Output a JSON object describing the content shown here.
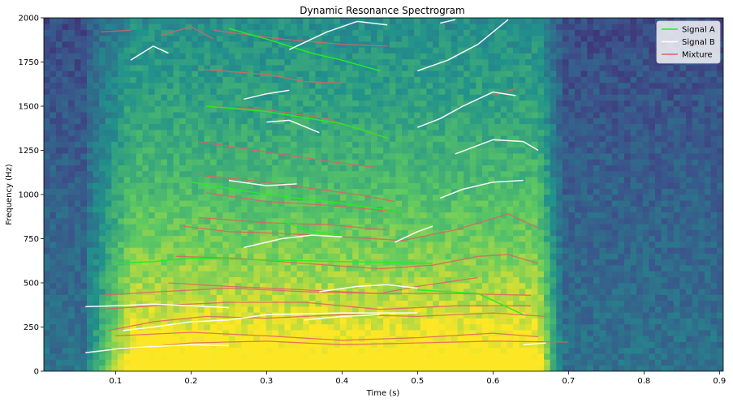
{
  "chart_data": {
    "type": "heatmap",
    "title": "Dynamic Resonance Spectrogram",
    "xlabel": "Time (s)",
    "ylabel": "Frequency (Hz)",
    "xlim": [
      0.005,
      0.905
    ],
    "ylim": [
      0,
      2000
    ],
    "x_ticks": [
      0.1,
      0.2,
      0.3,
      0.4,
      0.5,
      0.6,
      0.7,
      0.8,
      0.9
    ],
    "x_tick_labels": [
      "0.1",
      "0.2",
      "0.3",
      "0.4",
      "0.5",
      "0.6",
      "0.7",
      "0.8",
      "0.9"
    ],
    "y_ticks": [
      0,
      250,
      500,
      750,
      1000,
      1250,
      1500,
      1750,
      2000
    ],
    "y_tick_labels": [
      "0",
      "250",
      "500",
      "750",
      "1000",
      "1250",
      "1500",
      "1750",
      "2000"
    ],
    "colormap": "viridis",
    "legend": {
      "placement": "top-right"
    },
    "series": [
      {
        "name": "Signal A",
        "color": "#22ee22",
        "tracks": [
          [
            [
              0.1,
              610
            ],
            [
              0.15,
              620
            ],
            [
              0.2,
              640
            ],
            [
              0.3,
              630
            ],
            [
              0.4,
              620
            ],
            [
              0.52,
              610
            ]
          ],
          [
            [
              0.2,
              1070
            ],
            [
              0.3,
              1000
            ],
            [
              0.4,
              950
            ],
            [
              0.48,
              900
            ]
          ],
          [
            [
              0.22,
              1500
            ],
            [
              0.3,
              1470
            ],
            [
              0.4,
              1400
            ],
            [
              0.46,
              1320
            ]
          ],
          [
            [
              0.25,
              1940
            ],
            [
              0.3,
              1880
            ],
            [
              0.36,
              1800
            ],
            [
              0.4,
              1760
            ],
            [
              0.45,
              1700
            ]
          ],
          [
            [
              0.32,
              850
            ],
            [
              0.36,
              790
            ],
            [
              0.4,
              770
            ]
          ],
          [
            [
              0.5,
              460
            ],
            [
              0.58,
              440
            ],
            [
              0.64,
              320
            ]
          ]
        ]
      },
      {
        "name": "Signal B",
        "color": "#ffffff",
        "tracks": [
          [
            [
              0.06,
              105
            ],
            [
              0.1,
              125
            ],
            [
              0.15,
              140
            ],
            [
              0.2,
              150
            ],
            [
              0.25,
              145
            ]
          ],
          [
            [
              0.06,
              365
            ],
            [
              0.1,
              370
            ],
            [
              0.15,
              380
            ],
            [
              0.2,
              370
            ],
            [
              0.25,
              360
            ]
          ],
          [
            [
              0.11,
              230
            ],
            [
              0.15,
              250
            ],
            [
              0.2,
              280
            ],
            [
              0.25,
              290
            ],
            [
              0.3,
              320
            ],
            [
              0.4,
              330
            ],
            [
              0.5,
              330
            ]
          ],
          [
            [
              0.35,
              290
            ],
            [
              0.4,
              310
            ],
            [
              0.45,
              320
            ]
          ],
          [
            [
              0.37,
              450
            ],
            [
              0.42,
              480
            ],
            [
              0.46,
              490
            ],
            [
              0.5,
              470
            ]
          ],
          [
            [
              0.27,
              700
            ],
            [
              0.32,
              750
            ],
            [
              0.36,
              770
            ],
            [
              0.4,
              760
            ]
          ],
          [
            [
              0.25,
              1080
            ],
            [
              0.3,
              1050
            ],
            [
              0.34,
              1060
            ]
          ],
          [
            [
              0.3,
              1410
            ],
            [
              0.33,
              1420
            ],
            [
              0.37,
              1350
            ]
          ],
          [
            [
              0.27,
              1540
            ],
            [
              0.3,
              1570
            ],
            [
              0.33,
              1590
            ]
          ],
          [
            [
              0.53,
              980
            ],
            [
              0.56,
              1030
            ],
            [
              0.6,
              1070
            ],
            [
              0.64,
              1080
            ]
          ],
          [
            [
              0.55,
              1230
            ],
            [
              0.6,
              1310
            ],
            [
              0.64,
              1300
            ],
            [
              0.66,
              1250
            ]
          ],
          [
            [
              0.5,
              1380
            ],
            [
              0.53,
              1430
            ],
            [
              0.56,
              1500
            ],
            [
              0.6,
              1580
            ],
            [
              0.63,
              1560
            ]
          ],
          [
            [
              0.5,
              1700
            ],
            [
              0.54,
              1760
            ],
            [
              0.58,
              1850
            ],
            [
              0.62,
              1990
            ]
          ],
          [
            [
              0.33,
              1820
            ],
            [
              0.38,
              1920
            ],
            [
              0.42,
              1980
            ],
            [
              0.46,
              1960
            ]
          ],
          [
            [
              0.47,
              730
            ],
            [
              0.5,
              790
            ],
            [
              0.52,
              820
            ]
          ],
          [
            [
              0.12,
              1760
            ],
            [
              0.15,
              1840
            ],
            [
              0.17,
              1800
            ]
          ],
          [
            [
              0.53,
              1970
            ],
            [
              0.55,
              1990
            ]
          ],
          [
            [
              0.64,
              150
            ],
            [
              0.67,
              160
            ]
          ]
        ]
      },
      {
        "name": "Mixture",
        "color": "#e06060",
        "tracks": [
          [
            [
              0.1,
              120
            ],
            [
              0.2,
              160
            ],
            [
              0.3,
              170
            ],
            [
              0.4,
              150
            ],
            [
              0.5,
              160
            ],
            [
              0.6,
              170
            ],
            [
              0.7,
              165
            ]
          ],
          [
            [
              0.1,
              200
            ],
            [
              0.2,
              220
            ],
            [
              0.3,
              200
            ],
            [
              0.4,
              175
            ],
            [
              0.5,
              190
            ],
            [
              0.6,
              215
            ],
            [
              0.66,
              195
            ]
          ],
          [
            [
              0.09,
              230
            ],
            [
              0.15,
              280
            ],
            [
              0.22,
              310
            ],
            [
              0.3,
              300
            ],
            [
              0.4,
              320
            ],
            [
              0.5,
              310
            ],
            [
              0.6,
              330
            ],
            [
              0.67,
              310
            ]
          ],
          [
            [
              0.08,
              350
            ],
            [
              0.15,
              370
            ],
            [
              0.25,
              390
            ],
            [
              0.35,
              390
            ],
            [
              0.45,
              350
            ],
            [
              0.55,
              370
            ],
            [
              0.65,
              370
            ]
          ],
          [
            [
              0.08,
              430
            ],
            [
              0.16,
              450
            ],
            [
              0.25,
              470
            ],
            [
              0.35,
              450
            ],
            [
              0.45,
              440
            ],
            [
              0.55,
              440
            ],
            [
              0.65,
              430
            ]
          ],
          [
            [
              0.17,
              500
            ],
            [
              0.25,
              480
            ],
            [
              0.35,
              460
            ],
            [
              0.45,
              440
            ],
            [
              0.5,
              480
            ],
            [
              0.58,
              530
            ]
          ],
          [
            [
              0.18,
              650
            ],
            [
              0.26,
              640
            ],
            [
              0.35,
              610
            ],
            [
              0.45,
              580
            ],
            [
              0.52,
              600
            ],
            [
              0.58,
              650
            ],
            [
              0.62,
              660
            ],
            [
              0.66,
              610
            ]
          ],
          [
            [
              0.19,
              820
            ],
            [
              0.25,
              790
            ],
            [
              0.32,
              780
            ],
            [
              0.4,
              760
            ],
            [
              0.48,
              740
            ],
            [
              0.55,
              800
            ],
            [
              0.62,
              890
            ],
            [
              0.66,
              810
            ]
          ],
          [
            [
              0.21,
              870
            ],
            [
              0.3,
              840
            ],
            [
              0.38,
              830
            ],
            [
              0.46,
              800
            ]
          ],
          [
            [
              0.22,
              1010
            ],
            [
              0.3,
              960
            ],
            [
              0.38,
              940
            ],
            [
              0.48,
              900
            ]
          ],
          [
            [
              0.21,
              1110
            ],
            [
              0.28,
              1080
            ],
            [
              0.35,
              1040
            ],
            [
              0.42,
              1000
            ],
            [
              0.47,
              960
            ]
          ],
          [
            [
              0.21,
              1300
            ],
            [
              0.3,
              1240
            ],
            [
              0.38,
              1190
            ],
            [
              0.45,
              1150
            ]
          ],
          [
            [
              0.22,
              1500
            ],
            [
              0.3,
              1480
            ],
            [
              0.38,
              1430
            ],
            [
              0.45,
              1330
            ]
          ],
          [
            [
              0.21,
              1710
            ],
            [
              0.3,
              1680
            ],
            [
              0.35,
              1640
            ],
            [
              0.4,
              1630
            ]
          ],
          [
            [
              0.23,
              1930
            ],
            [
              0.32,
              1880
            ],
            [
              0.4,
              1850
            ],
            [
              0.46,
              1840
            ]
          ],
          [
            [
              0.16,
              1900
            ],
            [
              0.2,
              1950
            ],
            [
              0.23,
              1880
            ]
          ],
          [
            [
              0.6,
              1560
            ],
            [
              0.63,
              1600
            ]
          ],
          [
            [
              0.08,
              1920
            ],
            [
              0.12,
              1930
            ]
          ]
        ]
      }
    ]
  }
}
